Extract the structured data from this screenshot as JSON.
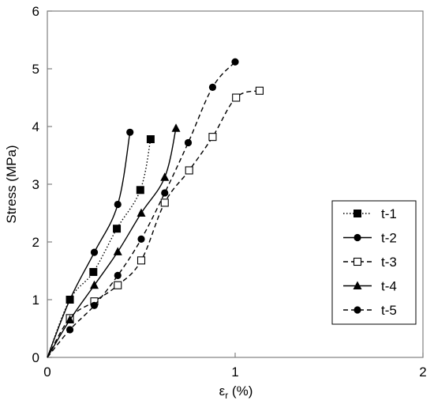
{
  "chart_data": {
    "type": "line",
    "title": "",
    "xlabel_main": "ε",
    "xlabel_sub": "r",
    "xlabel_unit": " (%)",
    "ylabel": "Stress (MPa)",
    "xlim": [
      0,
      2
    ],
    "ylim": [
      0,
      6
    ],
    "xticks": [
      "0",
      "1",
      "2"
    ],
    "yticks": [
      "0",
      "1",
      "2",
      "3",
      "4",
      "5",
      "6"
    ],
    "grid": false,
    "legend_position": "right",
    "series": [
      {
        "name": "t-1",
        "line": "dotted",
        "marker": "square-filled",
        "x": [
          0,
          0.12,
          0.245,
          0.37,
          0.495,
          0.55
        ],
        "y": [
          0,
          1.0,
          1.48,
          2.23,
          2.9,
          3.78
        ]
      },
      {
        "name": "t-2",
        "line": "solid",
        "marker": "circle-filled",
        "x": [
          0,
          0.12,
          0.25,
          0.375,
          0.44
        ],
        "y": [
          0,
          1.0,
          1.82,
          2.65,
          3.9
        ]
      },
      {
        "name": "t-3",
        "line": "dashed",
        "marker": "square-open",
        "x": [
          0,
          0.12,
          0.25,
          0.375,
          0.5,
          0.625,
          0.755,
          0.88,
          1.005,
          1.13
        ],
        "y": [
          0,
          0.68,
          0.97,
          1.25,
          1.68,
          2.68,
          3.24,
          3.82,
          4.5,
          4.62
        ]
      },
      {
        "name": "t-4",
        "line": "solid",
        "marker": "triangle-filled",
        "x": [
          0,
          0.12,
          0.25,
          0.375,
          0.5,
          0.625,
          0.685
        ],
        "y": [
          0,
          0.65,
          1.25,
          1.83,
          2.5,
          3.12,
          3.97
        ]
      },
      {
        "name": "t-5",
        "line": "dashed",
        "marker": "circle-filled",
        "x": [
          0,
          0.12,
          0.25,
          0.375,
          0.5,
          0.625,
          0.75,
          0.88,
          1.0
        ],
        "y": [
          0,
          0.48,
          0.9,
          1.42,
          2.05,
          2.85,
          3.72,
          4.68,
          5.12
        ]
      }
    ]
  }
}
